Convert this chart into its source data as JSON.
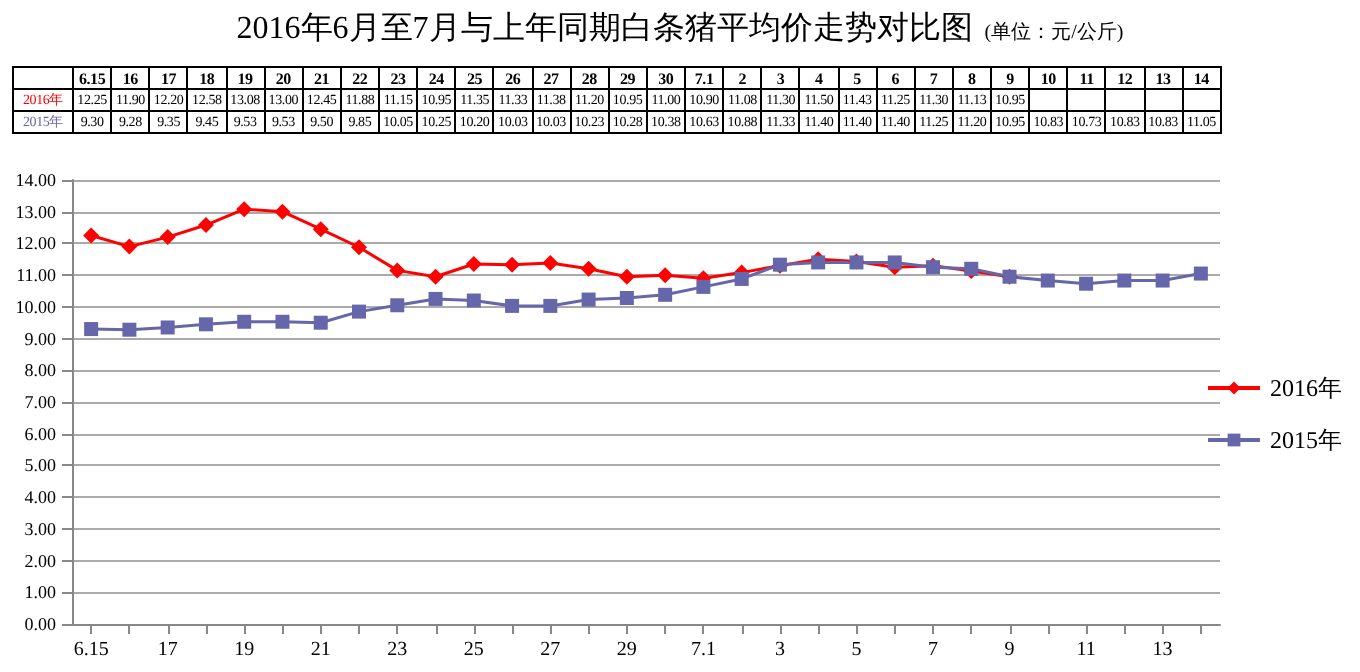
{
  "chart_data": {
    "type": "line",
    "title": "2016年6月至7月与上年同期白条猪平均价走势对比图",
    "subtitle": "(单位：元/公斤)",
    "categories": [
      "6.15",
      "16",
      "17",
      "18",
      "19",
      "20",
      "21",
      "22",
      "23",
      "24",
      "25",
      "26",
      "27",
      "28",
      "29",
      "30",
      "7.1",
      "2",
      "3",
      "4",
      "5",
      "6",
      "7",
      "8",
      "9",
      "10",
      "11",
      "12",
      "13",
      "14"
    ],
    "series": [
      {
        "name": "2016年",
        "color": "#ff0000",
        "marker": "diamond",
        "values": [
          12.25,
          11.9,
          12.2,
          12.58,
          13.08,
          13.0,
          12.45,
          11.88,
          11.15,
          10.95,
          11.35,
          11.33,
          11.38,
          11.2,
          10.95,
          11.0,
          10.9,
          11.08,
          11.3,
          11.5,
          11.43,
          11.25,
          11.3,
          11.13,
          10.95,
          null,
          null,
          null,
          null,
          null
        ],
        "value_labels": [
          "12.25",
          "11.90",
          "12.20",
          "12.58",
          "13.08",
          "13.00",
          "12.45",
          "11.88",
          "11.15",
          "10.95",
          "11.35",
          "11.33",
          "11.38",
          "11.20",
          "10.95",
          "11.00",
          "10.90",
          "11.08",
          "11.30",
          "11.50",
          "11.43",
          "11.25",
          "11.30",
          "11.13",
          "10.95",
          null,
          null,
          null,
          null,
          null
        ]
      },
      {
        "name": "2015年",
        "color": "#6666aa",
        "marker": "square",
        "values": [
          9.3,
          9.28,
          9.35,
          9.45,
          9.53,
          9.53,
          9.5,
          9.85,
          10.05,
          10.25,
          10.2,
          10.03,
          10.03,
          10.23,
          10.28,
          10.38,
          10.63,
          10.88,
          11.33,
          11.4,
          11.4,
          11.4,
          11.25,
          11.2,
          10.95,
          10.83,
          10.73,
          10.83,
          10.83,
          11.05
        ],
        "value_labels": [
          "9.30",
          "9.28",
          "9.35",
          "9.45",
          "9.53",
          "9.53",
          "9.50",
          "9.85",
          "10.05",
          "10.25",
          "10.20",
          "10.03",
          "10.03",
          "10.23",
          "10.28",
          "10.38",
          "10.63",
          "10.88",
          "11.33",
          "11.40",
          "11.40",
          "11.40",
          "11.25",
          "11.20",
          "10.95",
          "10.83",
          "10.73",
          "10.83",
          "10.83",
          "11.05"
        ]
      }
    ],
    "ylim": [
      0,
      14
    ],
    "yticks": [
      {
        "value": 0,
        "label": "0.00"
      },
      {
        "value": 1,
        "label": "1.00"
      },
      {
        "value": 2,
        "label": "2.00"
      },
      {
        "value": 3,
        "label": "3.00"
      },
      {
        "value": 4,
        "label": "4.00"
      },
      {
        "value": 5,
        "label": "5.00"
      },
      {
        "value": 6,
        "label": "6.00"
      },
      {
        "value": 7,
        "label": "7.00"
      },
      {
        "value": 8,
        "label": "8.00"
      },
      {
        "value": 9,
        "label": "9.00"
      },
      {
        "value": 10,
        "label": "10.00"
      },
      {
        "value": 11,
        "label": "11.00"
      },
      {
        "value": 12,
        "label": "12.00"
      },
      {
        "value": 13,
        "label": "13.00"
      },
      {
        "value": 14,
        "label": "14.00"
      }
    ],
    "grid": "y",
    "legend": "right",
    "line_style": "solid"
  }
}
